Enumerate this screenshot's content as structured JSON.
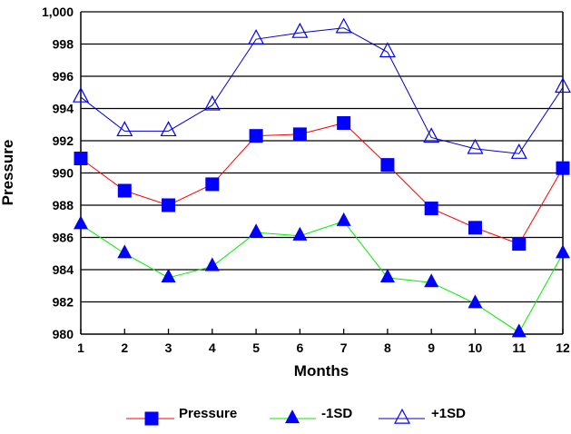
{
  "chart_data": {
    "type": "line",
    "title": "",
    "xlabel": "Months",
    "ylabel": "Pressure",
    "x": [
      1,
      2,
      3,
      4,
      5,
      6,
      7,
      8,
      9,
      10,
      11,
      12
    ],
    "x_tick_labels": [
      "1",
      "2",
      "3",
      "4",
      "5",
      "6",
      "7",
      "8",
      "9",
      "10",
      "11",
      "12"
    ],
    "y_tick_labels": [
      "980",
      "982",
      "984",
      "986",
      "988",
      "990",
      "992",
      "994",
      "996",
      "998",
      "1,000"
    ],
    "y_ticks": [
      980,
      982,
      984,
      986,
      988,
      990,
      992,
      994,
      996,
      998,
      1000
    ],
    "ylim": [
      980,
      1000
    ],
    "xlim": [
      1,
      12
    ],
    "grid": "horizontal",
    "legend_position": "bottom",
    "series": [
      {
        "name": "Pressure",
        "line_color": "#ff0000",
        "marker": "filled-square",
        "marker_color": "#0000ff",
        "values": [
          990.9,
          988.9,
          988.0,
          989.3,
          992.3,
          992.4,
          993.1,
          990.5,
          987.8,
          986.6,
          985.6,
          990.3
        ]
      },
      {
        "name": "-1SD",
        "line_color": "#00ee00",
        "marker": "filled-triangle",
        "marker_color": "#0000ff",
        "values": [
          986.8,
          985.0,
          983.5,
          984.2,
          986.3,
          986.1,
          987.0,
          983.5,
          983.2,
          981.9,
          980.1,
          985.0
        ]
      },
      {
        "name": "+1SD",
        "line_color": "#0000cc",
        "marker": "hollow-triangle",
        "marker_color": "#0000ff",
        "values": [
          994.7,
          992.6,
          992.6,
          994.2,
          998.3,
          998.7,
          999.0,
          997.5,
          992.2,
          991.5,
          991.2,
          995.3
        ]
      }
    ]
  }
}
